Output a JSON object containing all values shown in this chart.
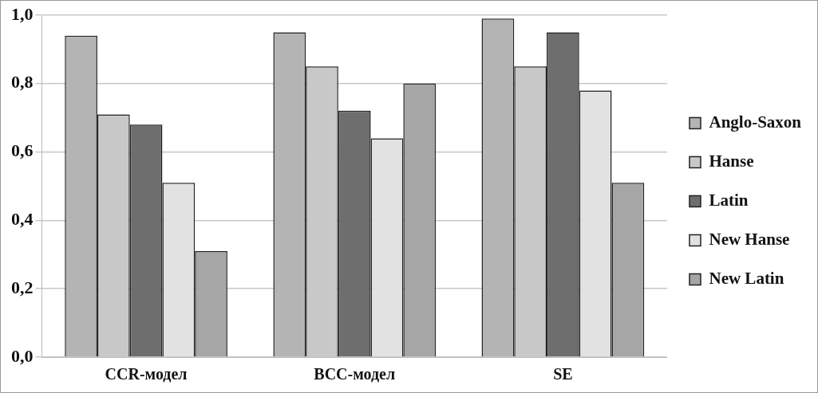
{
  "chart_data": {
    "type": "bar",
    "categories": [
      "CCR-модел",
      "BCC-модел",
      "SE"
    ],
    "series": [
      {
        "name": "Anglo-Saxon",
        "color": "#b4b4b4",
        "values": [
          0.94,
          0.95,
          0.99
        ]
      },
      {
        "name": "Hanse",
        "color": "#c8c8c8",
        "values": [
          0.71,
          0.85,
          0.85
        ]
      },
      {
        "name": "Latin",
        "color": "#6e6e6e",
        "values": [
          0.68,
          0.72,
          0.95
        ]
      },
      {
        "name": "New Hanse",
        "color": "#e2e2e2",
        "values": [
          0.51,
          0.64,
          0.78
        ]
      },
      {
        "name": "New Latin",
        "color": "#a6a6a6",
        "values": [
          0.31,
          0.8,
          0.51
        ]
      }
    ],
    "ylim": [
      0,
      1
    ],
    "yticks": [
      {
        "value": 0,
        "label": "0,0"
      },
      {
        "value": 0.2,
        "label": "0,2"
      },
      {
        "value": 0.4,
        "label": "0,4"
      },
      {
        "value": 0.6,
        "label": "0,6"
      },
      {
        "value": 0.8,
        "label": "0,8"
      },
      {
        "value": 1,
        "label": "1,0"
      }
    ],
    "grid": "y",
    "legend": "right"
  }
}
